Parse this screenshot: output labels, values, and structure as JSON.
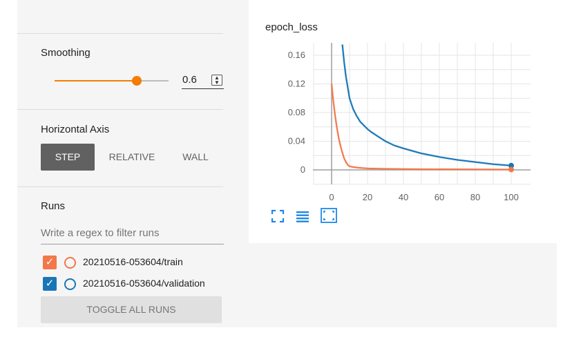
{
  "sidebar": {
    "smoothing": {
      "title": "Smoothing",
      "value": "0.6",
      "fraction": 0.6,
      "spinner_icon": "spinner-arrows-icon"
    },
    "horizontal_axis": {
      "title": "Horizontal Axis",
      "options": [
        "STEP",
        "RELATIVE",
        "WALL"
      ],
      "selected": "STEP"
    },
    "runs": {
      "title": "Runs",
      "filter_placeholder": "Write a regex to filter runs",
      "items": [
        {
          "label": "20210516-053604/train",
          "color": "#f37748",
          "checked": true
        },
        {
          "label": "20210516-053604/validation",
          "color": "#1976b6",
          "checked": true
        }
      ],
      "toggle_label": "TOGGLE ALL RUNS"
    },
    "accent_color": "#f57c00"
  },
  "chart_toolbar": {
    "icons": [
      "fit-domain-icon",
      "data-table-icon",
      "expand-chart-icon"
    ]
  },
  "chart_data": {
    "type": "line",
    "title": "epoch_loss",
    "xlim": [
      0,
      100
    ],
    "ylim": [
      -0.01,
      0.175
    ],
    "x_ticks": [
      0,
      20,
      40,
      60,
      80,
      100
    ],
    "y_ticks": [
      0,
      0.04,
      0.08,
      0.12,
      0.16
    ],
    "x_tick_labels": [
      "0",
      "20",
      "40",
      "60",
      "80",
      "100"
    ],
    "y_tick_labels": [
      "0",
      "0.04",
      "0.08",
      "0.12",
      "0.16"
    ],
    "grid": true,
    "series": [
      {
        "name": "20210516-053604/validation",
        "color": "#1976b6",
        "x": [
          6,
          7,
          8,
          9,
          10,
          12,
          14,
          16,
          18,
          20,
          22,
          25,
          30,
          35,
          40,
          50,
          60,
          70,
          80,
          90,
          100
        ],
        "values": [
          0.175,
          0.15,
          0.13,
          0.115,
          0.1,
          0.085,
          0.075,
          0.067,
          0.062,
          0.057,
          0.053,
          0.048,
          0.04,
          0.034,
          0.03,
          0.023,
          0.018,
          0.014,
          0.011,
          0.008,
          0.006
        ]
      },
      {
        "name": "20210516-053604/train",
        "color": "#f37748",
        "x": [
          0,
          1,
          2,
          3,
          4,
          5,
          6,
          7,
          8,
          9,
          10,
          12,
          15,
          20,
          30,
          50,
          100
        ],
        "values": [
          0.12,
          0.095,
          0.075,
          0.058,
          0.044,
          0.033,
          0.024,
          0.016,
          0.011,
          0.007,
          0.005,
          0.004,
          0.003,
          0.002,
          0.0015,
          0.001,
          0.0005
        ]
      }
    ]
  }
}
